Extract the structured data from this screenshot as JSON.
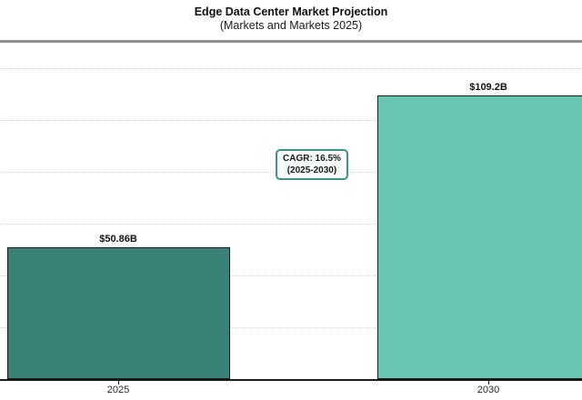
{
  "chart_data": {
    "type": "bar",
    "title": "Edge Data Center Market Projection",
    "subtitle": "(Markets and Markets 2025)",
    "categories": [
      "2025",
      "2030"
    ],
    "values": [
      50.86,
      109.2
    ],
    "value_labels": [
      "$50.86B",
      "$109.2B"
    ],
    "bar_colors": [
      "#388277",
      "#69c4b2"
    ],
    "bar_border_color": "#1a1a1a",
    "xlabel": "",
    "ylabel": "",
    "ylim": [
      0,
      130
    ],
    "gridline_values": [
      20,
      40,
      60,
      80,
      100,
      120
    ],
    "grid": "horizontal-dotted",
    "legend_position": "none",
    "annotation": {
      "line1": "CAGR: 16.5%",
      "line2": "(2025-2030)",
      "border_color": "#3d9488"
    },
    "accent_colors": {
      "separator": "#8f8f8f",
      "axis": "#1a1a1a",
      "gridline": "#dcdcdc"
    }
  }
}
